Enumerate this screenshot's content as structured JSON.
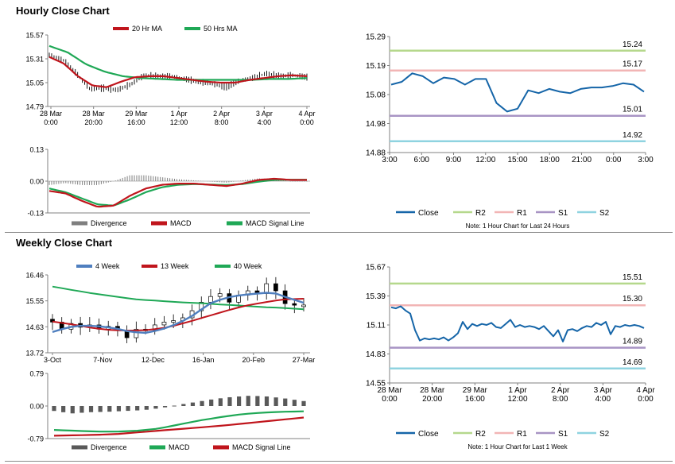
{
  "hourly": {
    "title": "Hourly Close Chart",
    "price": {
      "legend": [
        {
          "label": "20 Hr MA",
          "color": "#c0151c"
        },
        {
          "label": "50 Hrs MA",
          "color": "#1fa856"
        }
      ],
      "y_ticks": [
        "15.57",
        "15.31",
        "15.05",
        "14.79"
      ],
      "x_ticks": [
        [
          "28 Mar",
          "0:00"
        ],
        [
          "28 Mar",
          "20:00"
        ],
        [
          "29 Mar",
          "16:00"
        ],
        [
          "1 Apr",
          "12:00"
        ],
        [
          "2 Apr",
          "8:00"
        ],
        [
          "3 Apr",
          "4:00"
        ],
        [
          "4 Apr",
          "0:00"
        ]
      ]
    },
    "macd": {
      "y_ticks": [
        "0.13",
        "0.00",
        "-0.13"
      ],
      "legend": [
        {
          "label": "Divergence",
          "color": "#7f7f7f"
        },
        {
          "label": "MACD",
          "color": "#c0151c"
        },
        {
          "label": "MACD Signal Line",
          "color": "#1fa856"
        }
      ]
    }
  },
  "weekly": {
    "title": "Weekly Close Chart",
    "price": {
      "legend": [
        {
          "label": "4 Week",
          "color": "#4f7fbf"
        },
        {
          "label": "13 Week",
          "color": "#c0151c"
        },
        {
          "label": "40 Week",
          "color": "#1fa856"
        }
      ],
      "y_ticks": [
        "16.46",
        "15.55",
        "14.63",
        "13.72"
      ],
      "x_ticks": [
        "3-Oct",
        "7-Nov",
        "12-Dec",
        "16-Jan",
        "20-Feb",
        "27-Mar"
      ]
    },
    "macd": {
      "y_ticks": [
        "0.79",
        "0.00",
        "-0.79"
      ],
      "legend": [
        {
          "label": "Divergence",
          "color": "#595959"
        },
        {
          "label": "MACD",
          "color": "#1fa856"
        },
        {
          "label": "MACD Signal Line",
          "color": "#c0151c"
        }
      ]
    }
  },
  "chart_data": [
    {
      "id": "hourly-24h",
      "type": "line",
      "x_ticks": [
        "3:00",
        "6:00",
        "9:00",
        "12:00",
        "15:00",
        "18:00",
        "21:00",
        "0:00",
        "3:00"
      ],
      "ylim": [
        14.88,
        15.29
      ],
      "y_ticks": [
        "15.29",
        "15.19",
        "15.08",
        "14.98",
        "14.88"
      ],
      "series": [
        {
          "name": "Close",
          "color": "#1565a8",
          "values": [
            15.12,
            15.13,
            15.16,
            15.15,
            15.125,
            15.145,
            15.14,
            15.12,
            15.14,
            15.14,
            15.055,
            15.025,
            15.035,
            15.1,
            15.09,
            15.105,
            15.095,
            15.09,
            15.105,
            15.11,
            15.11,
            15.115,
            15.125,
            15.12,
            15.095
          ]
        }
      ],
      "levels": [
        {
          "name": "R2",
          "value": 15.24,
          "label": "15.24",
          "color": "#b5d88c"
        },
        {
          "name": "R1",
          "value": 15.17,
          "label": "15.17",
          "color": "#f2b5b5"
        },
        {
          "name": "S1",
          "value": 15.01,
          "label": "15.01",
          "color": "#a894c4"
        },
        {
          "name": "S2",
          "value": 14.92,
          "label": "14.92",
          "color": "#8fd3e0"
        }
      ],
      "legend": [
        "Close",
        "R2",
        "R1",
        "S1",
        "S2"
      ],
      "note": "Note: 1 Hour Chart for Last 24 Hours"
    },
    {
      "id": "hourly-1w",
      "type": "line",
      "x_ticks": [
        [
          "28 Mar",
          "0:00"
        ],
        [
          "28 Mar",
          "20:00"
        ],
        [
          "29 Mar",
          "16:00"
        ],
        [
          "1 Apr",
          "12:00"
        ],
        [
          "2 Apr",
          "8:00"
        ],
        [
          "3 Apr",
          "4:00"
        ],
        [
          "4 Apr",
          "0:00"
        ]
      ],
      "ylim": [
        14.55,
        15.67
      ],
      "y_ticks": [
        "15.67",
        "15.39",
        "15.11",
        "14.83",
        "14.55"
      ],
      "series": [
        {
          "name": "Close",
          "color": "#1565a8",
          "values": [
            15.28,
            15.27,
            15.29,
            15.25,
            15.22,
            15.06,
            14.96,
            14.98,
            14.97,
            14.98,
            14.97,
            14.99,
            14.96,
            14.99,
            15.03,
            15.14,
            15.07,
            15.12,
            15.1,
            15.12,
            15.11,
            15.13,
            15.09,
            15.08,
            15.12,
            15.16,
            15.09,
            15.11,
            15.09,
            15.1,
            15.09,
            15.07,
            15.1,
            15.05,
            15.0,
            15.06,
            14.95,
            15.06,
            15.07,
            15.05,
            15.08,
            15.1,
            15.09,
            15.13,
            15.11,
            15.14,
            15.02,
            15.1,
            15.09,
            15.11,
            15.1,
            15.11,
            15.1,
            15.08
          ]
        }
      ],
      "levels": [
        {
          "name": "R2",
          "value": 15.51,
          "label": "15.51",
          "color": "#b5d88c"
        },
        {
          "name": "R1",
          "value": 15.3,
          "label": "15.30",
          "color": "#f2b5b5"
        },
        {
          "name": "S1",
          "value": 14.89,
          "label": "14.89",
          "color": "#a894c4"
        },
        {
          "name": "S2",
          "value": 14.69,
          "label": "14.69",
          "color": "#8fd3e0"
        }
      ],
      "legend": [
        "Close",
        "R2",
        "R1",
        "S1",
        "S2"
      ],
      "note": "Note: 1 Hour Chart for Last 1 Week"
    }
  ]
}
